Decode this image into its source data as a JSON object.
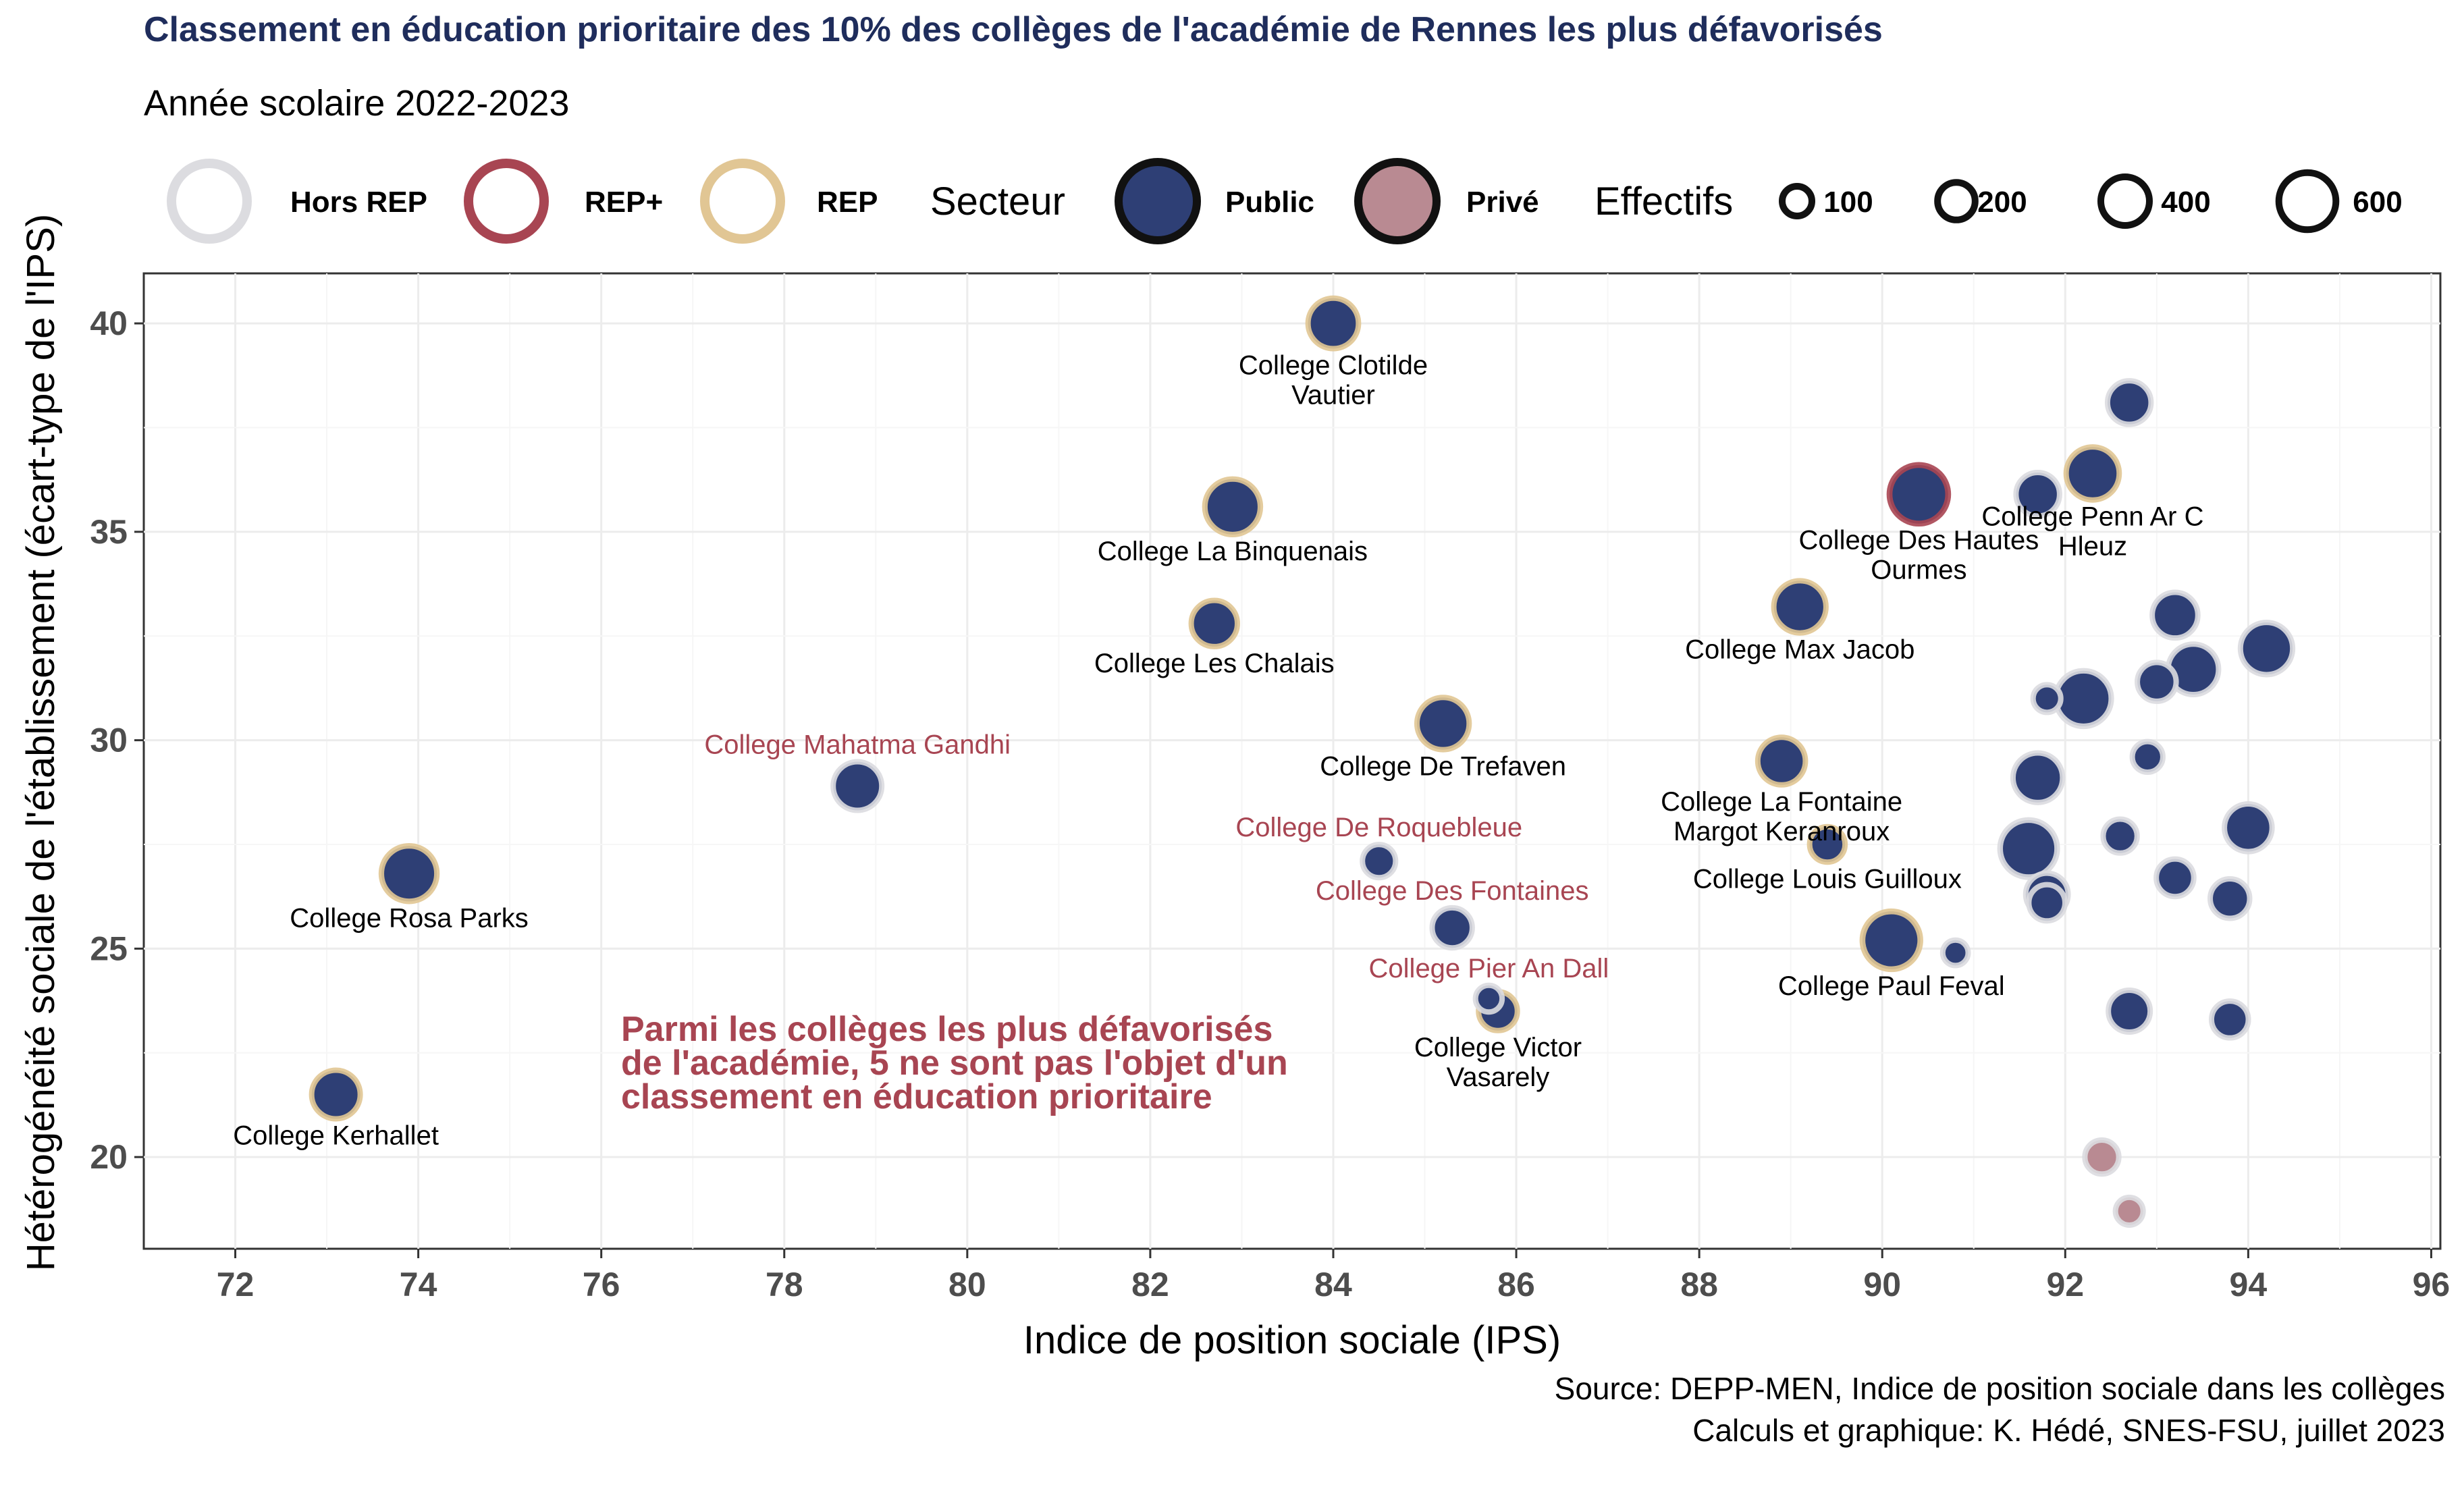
{
  "title": "Classement en éducation prioritaire des 10% des collèges de l'académie de Rennes les plus défavorisés",
  "subtitle": "Année scolaire 2022-2023",
  "source_line1": "Source: DEPP-MEN, Indice de position sociale dans les collèges",
  "source_line2": "Calculs et graphique: K. Hédé, SNES-FSU, juillet 2023",
  "annotation": [
    "Parmi les collèges les plus défavorisés",
    "de l'académie, 5 ne sont pas l'objet d'un",
    "classement en éducation prioritaire"
  ],
  "colors": {
    "public": "#2e3f75",
    "prive": "#b98a92",
    "hors_rep": "#dcdce0",
    "rep_plus": "#a84552",
    "rep": "#e1c694",
    "highlight_label": "#a84552",
    "title": "#1f2d5c"
  },
  "legend": {
    "education_items": [
      {
        "label": "Hors REP",
        "key": "hors_rep"
      },
      {
        "label": "REP+",
        "key": "rep_plus"
      },
      {
        "label": "REP",
        "key": "rep"
      }
    ],
    "secteur_title": "Secteur",
    "secteur_items": [
      {
        "label": "Public",
        "key": "public"
      },
      {
        "label": "Privé",
        "key": "prive"
      }
    ],
    "effectifs_title": "Effectifs",
    "effectifs_items": [
      {
        "label": "100",
        "value": 100
      },
      {
        "label": "200",
        "value": 200
      },
      {
        "label": "400",
        "value": 400
      },
      {
        "label": "600",
        "value": 600
      }
    ]
  },
  "chart_data": {
    "type": "scatter",
    "xlabel": "Indice de position sociale (IPS)",
    "ylabel": "Hétérogénéité sociale de l'établissement (écart-type de l'IPS)",
    "xlim": [
      71,
      96.1
    ],
    "ylim": [
      17.8,
      41.2
    ],
    "x_ticks": [
      72,
      74,
      76,
      78,
      80,
      82,
      84,
      86,
      88,
      90,
      92,
      94,
      96
    ],
    "y_ticks": [
      20,
      25,
      30,
      35,
      40
    ],
    "grid": true,
    "points": [
      {
        "x": 73.1,
        "y": 21.5,
        "effectif": 400,
        "classement": "rep",
        "secteur": "public",
        "label": "College Kerhallet",
        "label_lines": [
          "College Kerhallet"
        ],
        "label_pos": "below",
        "highlight": false
      },
      {
        "x": 73.9,
        "y": 26.8,
        "effectif": 560,
        "classement": "rep",
        "secteur": "public",
        "label": "College Rosa Parks",
        "label_lines": [
          "College Rosa Parks"
        ],
        "label_pos": "below",
        "highlight": false
      },
      {
        "x": 78.8,
        "y": 28.9,
        "effectif": 400,
        "classement": "hors_rep",
        "secteur": "public",
        "label": "College Mahatma Gandhi",
        "label_lines": [
          "College Mahatma Gandhi"
        ],
        "label_pos": "above",
        "highlight": true
      },
      {
        "x": 82.7,
        "y": 32.8,
        "effectif": 350,
        "classement": "rep",
        "secteur": "public",
        "label": "College Les Chalais",
        "label_lines": [
          "College Les Chalais"
        ],
        "label_pos": "below",
        "highlight": false
      },
      {
        "x": 82.9,
        "y": 35.6,
        "effectif": 560,
        "classement": "rep",
        "secteur": "public",
        "label": "College La Binquenais",
        "label_lines": [
          "College La Binquenais"
        ],
        "label_pos": "below",
        "highlight": false
      },
      {
        "x": 84.0,
        "y": 40.0,
        "effectif": 440,
        "classement": "rep",
        "secteur": "public",
        "label": "College Clotilde Vautier",
        "label_lines": [
          "College Clotilde",
          "Vautier"
        ],
        "label_pos": "below",
        "highlight": false
      },
      {
        "x": 84.5,
        "y": 27.1,
        "effectif": 140,
        "classement": "hors_rep",
        "secteur": "public",
        "label": "College De Roquebleue",
        "label_lines": [
          "College De Roquebleue"
        ],
        "label_pos": "above",
        "highlight": true
      },
      {
        "x": 85.2,
        "y": 30.4,
        "effectif": 480,
        "classement": "rep",
        "secteur": "public",
        "label": "College De Trefaven",
        "label_lines": [
          "College De Trefaven"
        ],
        "label_pos": "below",
        "highlight": false
      },
      {
        "x": 85.3,
        "y": 25.5,
        "effectif": 240,
        "classement": "hors_rep",
        "secteur": "public",
        "label": "College Des Fontaines",
        "label_lines": [
          "College Des Fontaines"
        ],
        "label_pos": "above",
        "highlight": true
      },
      {
        "x": 85.7,
        "y": 23.8,
        "effectif": 70,
        "classement": "hors_rep",
        "secteur": "public",
        "label": "College Pier An Dall",
        "label_lines": [
          "College Pier An Dall"
        ],
        "label_pos": "above",
        "highlight": true
      },
      {
        "x": 85.8,
        "y": 23.5,
        "effectif": 220,
        "classement": "rep",
        "secteur": "public",
        "label": "College Victor Vasarely",
        "label_lines": [
          "College Victor",
          "Vasarely"
        ],
        "label_pos": "below",
        "highlight": false
      },
      {
        "x": 88.9,
        "y": 29.5,
        "effectif": 380,
        "classement": "rep",
        "secteur": "public",
        "label": "College La Fontaine Margot Keranroux",
        "label_lines": [
          "College La Fontaine",
          "Margot Keranroux"
        ],
        "label_pos": "below",
        "highlight": false
      },
      {
        "x": 89.1,
        "y": 33.2,
        "effectif": 480,
        "classement": "rep",
        "secteur": "public",
        "label": "College Max Jacob",
        "label_lines": [
          "College Max Jacob"
        ],
        "label_pos": "below",
        "highlight": false
      },
      {
        "x": 89.4,
        "y": 27.5,
        "effectif": 170,
        "classement": "rep",
        "secteur": "public",
        "label": "College Louis Guilloux",
        "label_lines": [
          "College Louis Guilloux"
        ],
        "label_pos": "below",
        "highlight": false
      },
      {
        "x": 90.1,
        "y": 25.2,
        "effectif": 620,
        "classement": "rep",
        "secteur": "public",
        "label": "College Paul Feval",
        "label_lines": [
          "College Paul Feval"
        ],
        "label_pos": "below",
        "highlight": false
      },
      {
        "x": 90.4,
        "y": 35.9,
        "effectif": 640,
        "classement": "rep_plus",
        "secteur": "public",
        "label": "College Des Hautes Ourmes",
        "label_lines": [
          "College Des Hautes",
          "Ourmes"
        ],
        "label_pos": "below",
        "highlight": false
      },
      {
        "x": 92.3,
        "y": 36.4,
        "effectif": 500,
        "classement": "rep",
        "secteur": "public",
        "label": "College Penn Ar C Hleuz",
        "label_lines": [
          "College Penn Ar C",
          "Hleuz"
        ],
        "label_pos": "below",
        "highlight": false
      },
      {
        "x": 90.8,
        "y": 24.9,
        "effectif": 60,
        "classement": "hors_rep",
        "secteur": "public",
        "label": null
      },
      {
        "x": 91.7,
        "y": 35.9,
        "effectif": 300,
        "classement": "hors_rep",
        "secteur": "public",
        "label": null
      },
      {
        "x": 91.8,
        "y": 31.0,
        "effectif": 80,
        "classement": "hors_rep",
        "secteur": "public",
        "label": null
      },
      {
        "x": 92.2,
        "y": 31.0,
        "effectif": 560,
        "classement": "hors_rep",
        "secteur": "public",
        "label": null
      },
      {
        "x": 91.7,
        "y": 29.1,
        "effectif": 420,
        "classement": "hors_rep",
        "secteur": "public",
        "label": null
      },
      {
        "x": 91.6,
        "y": 27.4,
        "effectif": 600,
        "classement": "hors_rep",
        "secteur": "public",
        "label": null
      },
      {
        "x": 91.8,
        "y": 26.3,
        "effectif": 280,
        "classement": "hors_rep",
        "secteur": "public",
        "label": null
      },
      {
        "x": 91.8,
        "y": 26.1,
        "effectif": 180,
        "classement": "hors_rep",
        "secteur": "public",
        "label": null
      },
      {
        "x": 92.7,
        "y": 38.1,
        "effectif": 300,
        "classement": "hors_rep",
        "secteur": "public",
        "label": null
      },
      {
        "x": 92.6,
        "y": 27.7,
        "effectif": 150,
        "classement": "hors_rep",
        "secteur": "public",
        "label": null
      },
      {
        "x": 92.7,
        "y": 23.5,
        "effectif": 270,
        "classement": "hors_rep",
        "secteur": "public",
        "label": null
      },
      {
        "x": 92.9,
        "y": 29.6,
        "effectif": 110,
        "classement": "hors_rep",
        "secteur": "public",
        "label": null
      },
      {
        "x": 93.0,
        "y": 31.4,
        "effectif": 220,
        "classement": "hors_rep",
        "secteur": "public",
        "label": null
      },
      {
        "x": 93.2,
        "y": 33.0,
        "effectif": 340,
        "classement": "hors_rep",
        "secteur": "public",
        "label": null
      },
      {
        "x": 93.2,
        "y": 26.7,
        "effectif": 200,
        "classement": "hors_rep",
        "secteur": "public",
        "label": null
      },
      {
        "x": 93.4,
        "y": 31.7,
        "effectif": 440,
        "classement": "hors_rep",
        "secteur": "public",
        "label": null
      },
      {
        "x": 93.8,
        "y": 26.2,
        "effectif": 230,
        "classement": "hors_rep",
        "secteur": "public",
        "label": null
      },
      {
        "x": 93.8,
        "y": 23.3,
        "effectif": 190,
        "classement": "hors_rep",
        "secteur": "public",
        "label": null
      },
      {
        "x": 94.0,
        "y": 27.9,
        "effectif": 380,
        "classement": "hors_rep",
        "secteur": "public",
        "label": null
      },
      {
        "x": 94.2,
        "y": 32.2,
        "effectif": 480,
        "classement": "hors_rep",
        "secteur": "public",
        "label": null
      },
      {
        "x": 92.4,
        "y": 20.0,
        "effectif": 150,
        "classement": "hors_rep",
        "secteur": "prive",
        "label": null
      },
      {
        "x": 92.7,
        "y": 18.7,
        "effectif": 80,
        "classement": "hors_rep",
        "secteur": "prive",
        "label": null
      }
    ]
  }
}
